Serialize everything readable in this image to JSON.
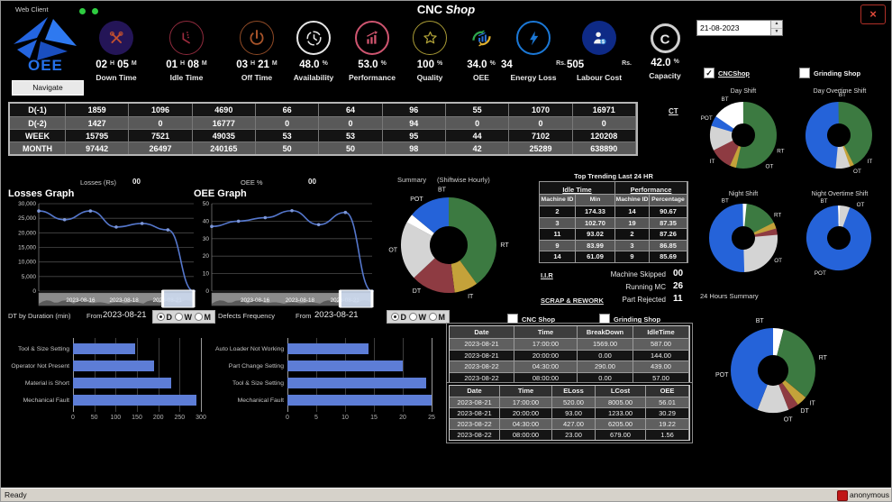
{
  "titlebar": {
    "web_client": "Web Client",
    "title_bold": "CNC",
    "title_italic": "Shop"
  },
  "logo": {
    "text": "OEE",
    "navigate": "Navigate"
  },
  "date_picker": {
    "value": "21-08-2023"
  },
  "top_filters": [
    {
      "label": "CNCShop",
      "checked": true,
      "active": true
    },
    {
      "label": "Grinding Shop",
      "checked": false,
      "active": false
    }
  ],
  "mid_filters": [
    {
      "label": "CNC Shop",
      "checked": false
    },
    {
      "label": "Grinding Shop",
      "checked": false
    }
  ],
  "kpis": [
    {
      "icon": "downtime",
      "v1": "02",
      "u1": "H",
      "v2": "05",
      "u2": "M",
      "label": "Down Time"
    },
    {
      "icon": "idletime",
      "v1": "01",
      "u1": "H",
      "v2": "08",
      "u2": "M",
      "label": "Idle Time"
    },
    {
      "icon": "offtime",
      "v1": "03",
      "u1": "H",
      "v2": "21",
      "u2": "M",
      "label": "Off Time"
    },
    {
      "icon": "availability",
      "v1": "48.0",
      "u1": "%",
      "label": "Availability"
    },
    {
      "icon": "performance",
      "v1": "53.0",
      "u1": "%",
      "label": "Performance"
    },
    {
      "icon": "quality",
      "v1": "100",
      "u1": "%",
      "label": "Quality"
    },
    {
      "icon": "oee",
      "v1": "34.0",
      "u1": "%",
      "label": "OEE"
    },
    {
      "icon": "energy",
      "v1": "34",
      "u1": "Rs.",
      "label": "Energy Loss",
      "spread": true
    },
    {
      "icon": "labour",
      "v1": "505",
      "u1": "Rs.",
      "label": "Labour Cost",
      "spread": true
    },
    {
      "icon": "capacity",
      "v1": "42.0",
      "u1": "%",
      "label": "Capacity"
    }
  ],
  "main_grid": {
    "row_headers": [
      "D(-1)",
      "D(-2)",
      "WEEK",
      "MONTH"
    ],
    "rows": [
      [
        "1859",
        "1096",
        "4690",
        "66",
        "64",
        "96",
        "55",
        "1070",
        "16971"
      ],
      [
        "1427",
        "0",
        "16777",
        "0",
        "0",
        "94",
        "0",
        "0",
        "0"
      ],
      [
        "15795",
        "7521",
        "49035",
        "53",
        "53",
        "95",
        "44",
        "7102",
        "120208"
      ],
      [
        "97442",
        "26497",
        "240165",
        "50",
        "50",
        "98",
        "42",
        "25289",
        "638890"
      ]
    ]
  },
  "links": {
    "ct": "CT",
    "iir": "I.I.R",
    "scrap": "SCRAP & REWORK"
  },
  "graphs": {
    "losses_caption": "Losses (Rs)",
    "losses_value": "00",
    "losses_title": "Losses Graph",
    "oee_caption": "OEE %",
    "oee_value": "00",
    "oee_title": "OEE Graph",
    "summary_title": "Summary",
    "summary_sub": "(Shiftwise Hourly)",
    "trending_title": "Top Trending Last 24 HR"
  },
  "trending": {
    "groups": [
      {
        "title": "Idle Time",
        "cols": [
          "Machine ID",
          "Min"
        ]
      },
      {
        "title": "Performance",
        "cols": [
          "Machine ID",
          "Percentage"
        ]
      }
    ],
    "rows": [
      [
        "2",
        "174.33",
        "14",
        "90.67"
      ],
      [
        "3",
        "102.70",
        "19",
        "87.35"
      ],
      [
        "11",
        "93.02",
        "2",
        "87.26"
      ],
      [
        "9",
        "83.99",
        "3",
        "86.85"
      ],
      [
        "14",
        "61.09",
        "9",
        "85.69"
      ]
    ]
  },
  "stats": [
    {
      "label": "Machine Skipped",
      "value": "00"
    },
    {
      "label": "Running MC",
      "value": "26"
    },
    {
      "label": "Part Rejected",
      "value": "11"
    }
  ],
  "controls": {
    "dt_title": "DT by Duration (min)",
    "from_label": "From",
    "dt_from": "2023-08-21",
    "defects_title": "Defects Frequency",
    "defects_from": "2023-08-21",
    "periods": [
      "D",
      "W",
      "M"
    ],
    "selected": "D"
  },
  "breakdown_table": {
    "headers": [
      "Date",
      "Time",
      "BreakDown",
      "IdleTime"
    ],
    "rows": [
      [
        "2023-08-21",
        "17:00:00",
        "1569.00",
        "587.00"
      ],
      [
        "2023-08-21",
        "20:00:00",
        "0.00",
        "144.00"
      ],
      [
        "2023-08-22",
        "04:30:00",
        "290.00",
        "439.00"
      ],
      [
        "2023-08-22",
        "08:00:00",
        "0.00",
        "57.00"
      ]
    ]
  },
  "eloss_table": {
    "headers": [
      "Date",
      "Time",
      "ELoss",
      "LCost",
      "OEE"
    ],
    "rows": [
      [
        "2023-08-21",
        "17:00:00",
        "520.00",
        "8005.00",
        "56.01"
      ],
      [
        "2023-08-21",
        "20:00:00",
        "93.00",
        "1233.00",
        "30.29"
      ],
      [
        "2023-08-22",
        "04:30:00",
        "427.00",
        "6205.00",
        "19.22"
      ],
      [
        "2023-08-22",
        "08:00:00",
        "23.00",
        "679.00",
        "1.56"
      ]
    ]
  },
  "status": {
    "ready": "Ready",
    "user": "anonymous"
  },
  "colors": {
    "bar": "#5d7dd6",
    "line": "#5577cc",
    "rt_green": "#3c7a41",
    "it_yellow": "#c4a23a",
    "dt_red": "#8e3b42",
    "ot_gray": "#d4d4d4",
    "pot_blue": "#2563d9",
    "bt_white": "#ffffff"
  },
  "chart_data": [
    {
      "id": "losses",
      "type": "line",
      "title": "Losses Graph",
      "x_ticks": [
        "2023-08-16",
        "2023-08-18",
        "2023-08-21"
      ],
      "values": [
        27500,
        24500,
        27500,
        22000,
        23200,
        21000,
        0
      ],
      "ylim": [
        0,
        30000
      ],
      "yticks": [
        0,
        5000,
        10000,
        15000,
        20000,
        25000,
        30000
      ]
    },
    {
      "id": "oee",
      "type": "line",
      "title": "OEE Graph",
      "x_ticks": [
        "2023-08-16",
        "2023-08-18",
        "2023-08-21"
      ],
      "values": [
        37,
        40,
        42,
        46,
        38,
        45,
        0
      ],
      "ylim": [
        0,
        50
      ],
      "yticks": [
        0,
        10,
        20,
        30,
        40,
        50
      ]
    },
    {
      "id": "dt_duration",
      "type": "bar",
      "title": "DT by Duration (min)",
      "categories": [
        "Tool & Size Setting",
        "Operator Not Present",
        "Material is Short",
        "Mechanical Fault"
      ],
      "values": [
        145,
        190,
        230,
        290
      ],
      "xlim": [
        0,
        300
      ],
      "xticks": [
        0,
        50,
        100,
        150,
        200,
        250,
        300
      ]
    },
    {
      "id": "defects",
      "type": "bar",
      "title": "Defects Frequency",
      "categories": [
        "Auto Loader Not Working",
        "Part Change Setting",
        "Tool & Size Setting",
        "Mechanical Fault"
      ],
      "values": [
        14,
        20,
        24,
        25
      ],
      "xlim": [
        0,
        25
      ],
      "xticks": [
        0,
        5,
        10,
        15,
        20,
        25
      ]
    },
    {
      "id": "summary_donut",
      "type": "donut",
      "title": "Summary (Shiftwise Hourly)",
      "segments": [
        {
          "label": "RT",
          "value": 40,
          "color": "#3c7a41",
          "la": 0
        },
        {
          "label": "IT",
          "value": 8,
          "color": "#c4a23a",
          "la": 67
        },
        {
          "label": "DT",
          "value": 15,
          "color": "#8e3b42",
          "la": 125
        },
        {
          "label": "OT",
          "value": 20,
          "color": "#d4d4d4",
          "la": 175
        },
        {
          "label": "POT",
          "value": 3,
          "color": "#ffffff",
          "la": -125
        },
        {
          "label": "BT",
          "value": 14,
          "color": "#2563d9",
          "la": -97
        }
      ]
    },
    {
      "id": "day_shift",
      "type": "donut",
      "title": "Day Shift",
      "segments": [
        {
          "label": "RT",
          "value": 54,
          "color": "#3c7a41",
          "la": 23
        },
        {
          "label": "IT",
          "value": 3,
          "color": "#c4a23a",
          "la": 140
        },
        {
          "label": "DT",
          "value": 11,
          "color": "#8e3b42",
          "show": false
        },
        {
          "label": "OT",
          "value": 12,
          "color": "#d4d4d4",
          "la": 50
        },
        {
          "label": "POT",
          "value": 5,
          "color": "#2563d9",
          "la": -155
        },
        {
          "label": "BT",
          "value": 15,
          "color": "#ffffff"
        }
      ]
    },
    {
      "id": "day_overtime",
      "type": "donut",
      "title": "Day Overtime Shift",
      "segments": [
        {
          "label": "RT",
          "value": 43,
          "color": "#3c7a41",
          "show": false
        },
        {
          "label": "IT",
          "value": 2,
          "color": "#c4a23a",
          "la": 40
        },
        {
          "label": "OT",
          "value": 7,
          "color": "#d4d4d4",
          "la": 63
        },
        {
          "label": "BT",
          "value": 48,
          "color": "#2563d9",
          "la": -85
        }
      ]
    },
    {
      "id": "night_shift",
      "type": "donut",
      "title": "Night Shift",
      "segments": [
        {
          "label": "BT",
          "value": 2,
          "color": "#ffffff",
          "la": -116
        },
        {
          "label": "RT",
          "value": 16,
          "color": "#3c7a41",
          "la": -34
        },
        {
          "label": "IT",
          "value": 3,
          "color": "#c4a23a",
          "show": false
        },
        {
          "label": "DT",
          "value": 3,
          "color": "#8e3b42",
          "show": false
        },
        {
          "label": "OT",
          "value": 26,
          "color": "#d4d4d4",
          "la": 33
        },
        {
          "label": "POT",
          "value": 50,
          "color": "#2563d9",
          "show": false
        }
      ]
    },
    {
      "id": "night_overtime",
      "type": "donut",
      "title": "Night Overtime Shift",
      "segments": [
        {
          "label": "BT",
          "value": 1,
          "color": "#ffffff",
          "la": -112
        },
        {
          "label": "OT",
          "value": 5,
          "color": "#d4d4d4",
          "la": -57
        },
        {
          "label": "POT",
          "value": 94,
          "color": "#2563d9",
          "la": 118
        }
      ]
    },
    {
      "id": "hours24",
      "type": "donut",
      "title": "24 Hours Summary",
      "segments": [
        {
          "label": "BT",
          "value": 4,
          "color": "#ffffff",
          "la": -105
        },
        {
          "label": "RT",
          "value": 32,
          "color": "#3c7a41",
          "la": -14
        },
        {
          "label": "IT",
          "value": 4,
          "color": "#c4a23a",
          "la": 40
        },
        {
          "label": "DT",
          "value": 4,
          "color": "#8e3b42",
          "la": 52
        },
        {
          "label": "OT",
          "value": 12,
          "color": "#d4d4d4",
          "la": 73
        },
        {
          "label": "POT",
          "value": 44,
          "color": "#2563d9",
          "la": 175
        }
      ]
    }
  ]
}
